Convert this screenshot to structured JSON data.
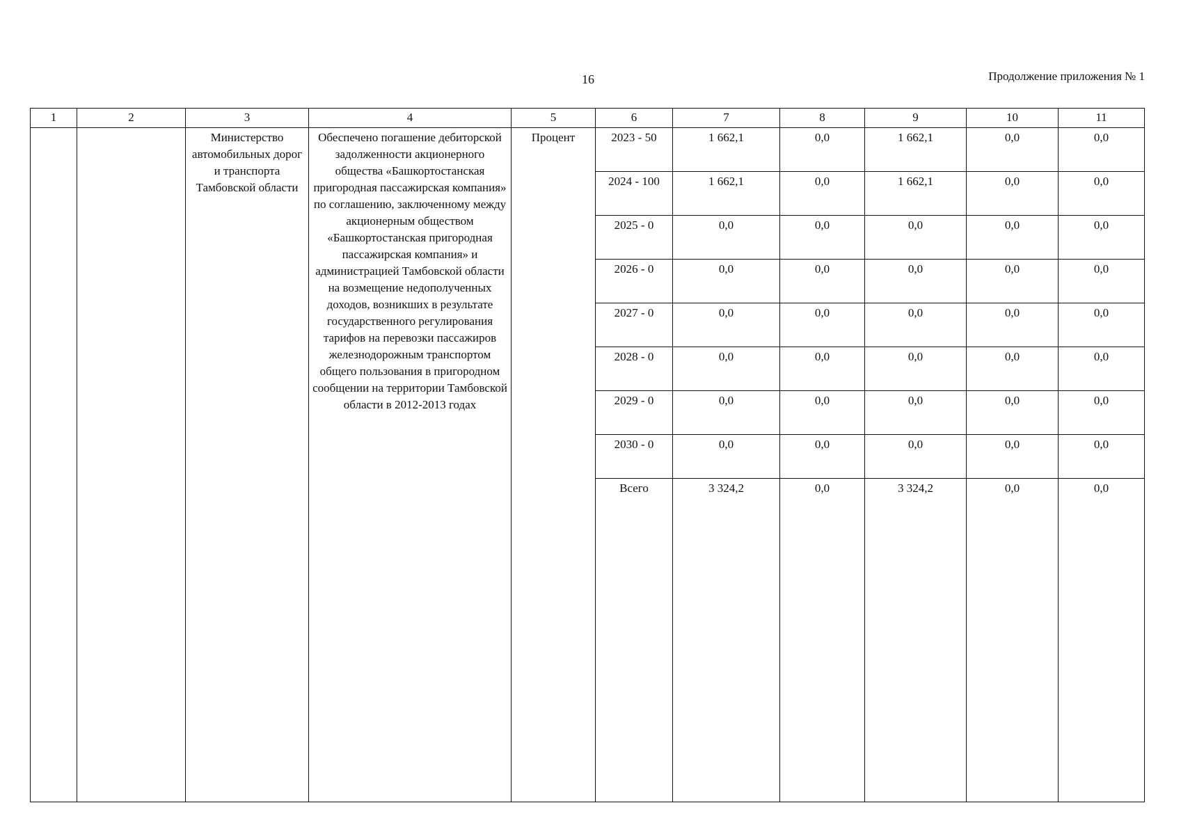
{
  "page_number": "16",
  "appendix_label": "Продолжение приложения № 1",
  "columns": [
    "1",
    "2",
    "3",
    "4",
    "5",
    "6",
    "7",
    "8",
    "9",
    "10",
    "11"
  ],
  "entry": {
    "col1": "",
    "col2": "",
    "executor": "Министерство автомобильных дорог и транспорта Тамбовской области",
    "result": "Обеспечено погашение дебиторской задолженности акционерного общества «Башкортостанская пригородная пассажирская компания» по соглашению, заключенному между акционерным обществом «Башкортостанская пригородная пассажирская компания» и администрацией Тамбовской области на возмещение недополученных доходов, возникших в результате государственного регулирования тарифов на перевозки пассажиров железнодорожным транспортом общего пользования в пригородном сообщении на территории Тамбовской области в 2012-2013 годах",
    "unit": "Процент",
    "rows": [
      [
        "2023 - 50",
        "1 662,1",
        "0,0",
        "1 662,1",
        "0,0",
        "0,0"
      ],
      [
        "2024 - 100",
        "1 662,1",
        "0,0",
        "1 662,1",
        "0,0",
        "0,0"
      ],
      [
        "2025 - 0",
        "0,0",
        "0,0",
        "0,0",
        "0,0",
        "0,0"
      ],
      [
        "2026 - 0",
        "0,0",
        "0,0",
        "0,0",
        "0,0",
        "0,0"
      ],
      [
        "2027 - 0",
        "0,0",
        "0,0",
        "0,0",
        "0,0",
        "0,0"
      ],
      [
        "2028 - 0",
        "0,0",
        "0,0",
        "0,0",
        "0,0",
        "0,0"
      ],
      [
        "2029 - 0",
        "0,0",
        "0,0",
        "0,0",
        "0,0",
        "0,0"
      ],
      [
        "2030 - 0",
        "0,0",
        "0,0",
        "0,0",
        "0,0",
        "0,0"
      ],
      [
        "Всего",
        "3 324,2",
        "0,0",
        "3 324,2",
        "0,0",
        "0,0"
      ]
    ]
  }
}
